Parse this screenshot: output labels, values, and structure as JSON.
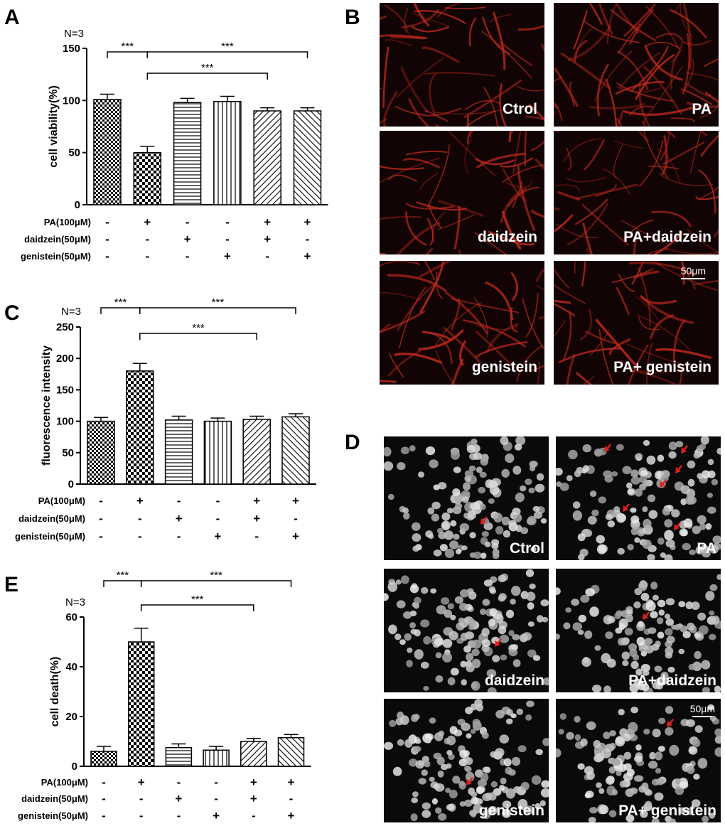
{
  "panels": {
    "A": {
      "letter": "A"
    },
    "B": {
      "letter": "B"
    },
    "C": {
      "letter": "C"
    },
    "D": {
      "letter": "D"
    },
    "E": {
      "letter": "E"
    }
  },
  "treatment_labels": [
    "PA(100μM)",
    "daidzein(50μM)",
    "genistein(50μM)"
  ],
  "treatment_matrix": [
    [
      "-",
      "+",
      "-",
      "-",
      "+",
      "+"
    ],
    [
      "-",
      "-",
      "+",
      "-",
      "+",
      "-"
    ],
    [
      "-",
      "-",
      "-",
      "+",
      "-",
      "+"
    ]
  ],
  "chart_data": [
    {
      "panel": "A",
      "type": "bar",
      "note": "N=3",
      "ylabel": "cell viability(%)",
      "ylim": [
        0,
        150
      ],
      "yticks": [
        0,
        50,
        100,
        150
      ],
      "values": [
        101,
        50,
        98,
        99,
        90,
        90
      ],
      "errors": [
        5,
        6,
        4,
        5,
        3,
        3
      ],
      "patterns": [
        "checker",
        "checker-bold",
        "hlines",
        "vlines",
        "diag",
        "diag-rev"
      ],
      "significance": [
        {
          "from": 0,
          "to": 1,
          "label": "***"
        },
        {
          "from": 1,
          "to": 5,
          "label": "***"
        },
        {
          "from": 1,
          "to": 4,
          "label": "***"
        }
      ]
    },
    {
      "panel": "C",
      "type": "bar",
      "note": "N=3",
      "ylabel": "fluorescence intensity",
      "ylim": [
        0,
        250
      ],
      "yticks": [
        0,
        50,
        100,
        150,
        200,
        250
      ],
      "values": [
        100,
        180,
        102,
        100,
        103,
        107
      ],
      "errors": [
        6,
        12,
        6,
        5,
        5,
        5
      ],
      "patterns": [
        "checker",
        "checker-bold",
        "hlines",
        "vlines",
        "diag",
        "diag-rev"
      ],
      "significance": [
        {
          "from": 0,
          "to": 1,
          "label": "***"
        },
        {
          "from": 1,
          "to": 5,
          "label": "***"
        },
        {
          "from": 1,
          "to": 4,
          "label": "***"
        }
      ]
    },
    {
      "panel": "E",
      "type": "bar",
      "note": "N=3",
      "ylabel": "cell death(%)",
      "ylim": [
        0,
        60
      ],
      "yticks": [
        0,
        20,
        40,
        60
      ],
      "values": [
        6,
        50,
        7.5,
        6.5,
        10,
        11.5
      ],
      "errors": [
        2,
        5.5,
        1.5,
        1.5,
        1.2,
        1.3
      ],
      "patterns": [
        "checker",
        "checker-bold",
        "hlines",
        "vlines",
        "diag",
        "diag-rev"
      ],
      "significance": [
        {
          "from": 0,
          "to": 1,
          "label": "***"
        },
        {
          "from": 1,
          "to": 5,
          "label": "***"
        },
        {
          "from": 1,
          "to": 4,
          "label": "***"
        }
      ]
    }
  ],
  "micrographs_B": {
    "labels": [
      "Ctrol",
      "PA",
      "daidzein",
      "PA+daidzein",
      "genistein",
      "PA+ genistein"
    ],
    "scalebar": "50μm",
    "tint": "#c42a1e"
  },
  "micrographs_D": {
    "labels": [
      "Ctrol",
      "PA",
      "daidzein",
      "PA+daidzein",
      "genistein",
      "PA+ genistein"
    ],
    "scalebar": "50μm",
    "arrow_color": "#e02020"
  }
}
